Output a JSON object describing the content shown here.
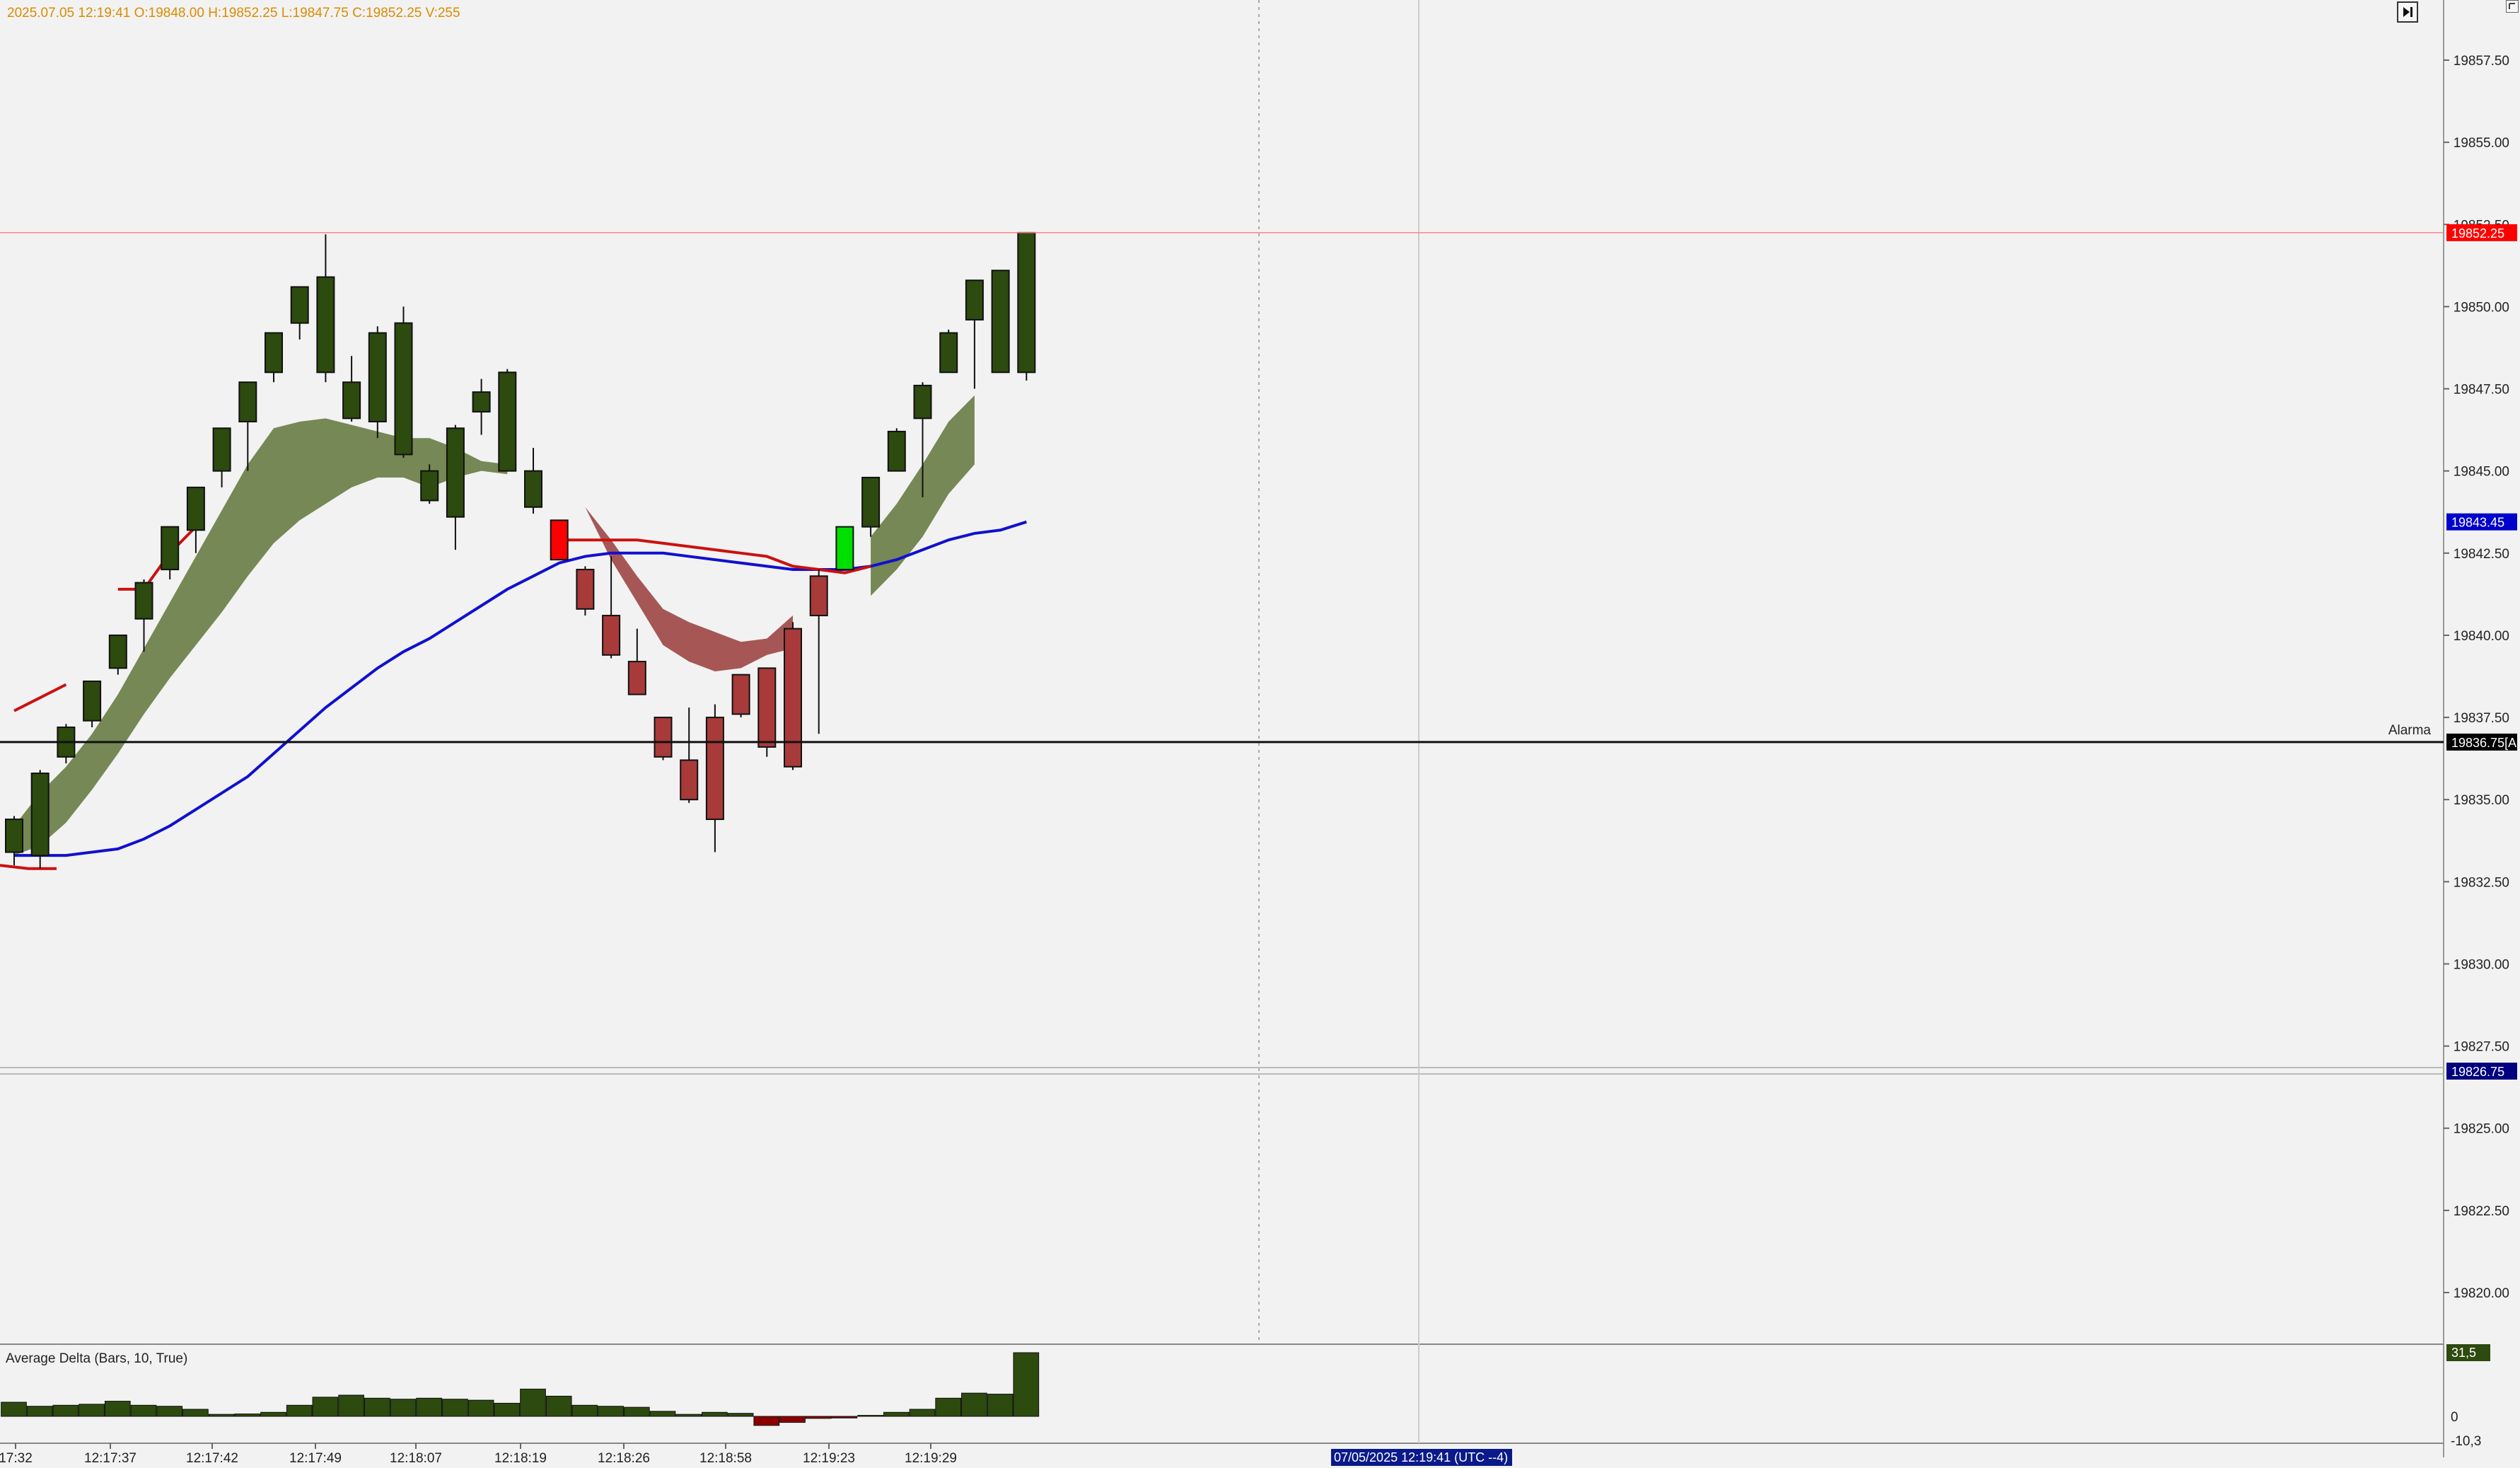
{
  "info_bar": "2025.07.05 12:19:41 O:19848.00 H:19852.25 L:19847.75 C:19852.25 V:255",
  "alarm_label": "Alarma",
  "indicator_title": "Average Delta (Bars, 10, True)",
  "cursor_time_label": "07/05/2025 12:19:41 (UTC --4)",
  "price_tags": {
    "last": "19852.25",
    "ma_blue": "19843.45",
    "alarm": "19836.75[A",
    "lower": "19826.75",
    "delta_value": "31,5"
  },
  "colors": {
    "bull": "#2d4a0f",
    "bear": "#a83a3a",
    "bull_cloud": "#6b7f48",
    "bear_cloud": "#a04a48",
    "ma_blue": "#1010d0",
    "ma_red": "#cc1010",
    "highlight_red": "#ff0000",
    "highlight_green": "#00e000"
  },
  "chart_data": {
    "type": "candlestick",
    "y_axis": {
      "ticks": [
        "19857.50",
        "19855.00",
        "19852.50",
        "19850.00",
        "19847.50",
        "19845.00",
        "19842.50",
        "19840.00",
        "19837.50",
        "19835.00",
        "19832.50",
        "19830.00",
        "19827.50",
        "19825.00",
        "19822.50",
        "19820.00"
      ],
      "range": [
        19819.0,
        19858.5
      ]
    },
    "x_axis": {
      "ticks": [
        "17:32",
        "12:17:37",
        "12:17:42",
        "12:17:49",
        "12:18:07",
        "12:18:19",
        "12:18:26",
        "12:18:58",
        "12:19:23",
        "12:19:29"
      ]
    },
    "candles": [
      {
        "o": 19833.4,
        "h": 19834.5,
        "l": 19833.0,
        "c": 19834.4,
        "color": "bull"
      },
      {
        "o": 19833.3,
        "h": 19835.9,
        "l": 19832.9,
        "c": 19835.8,
        "color": "bull"
      },
      {
        "o": 19836.3,
        "h": 19837.3,
        "l": 19836.1,
        "c": 19837.2,
        "color": "bull"
      },
      {
        "o": 19837.4,
        "h": 19838.6,
        "l": 19837.2,
        "c": 19838.6,
        "color": "bull"
      },
      {
        "o": 19839.0,
        "h": 19840.0,
        "l": 19838.8,
        "c": 19840.0,
        "color": "bull"
      },
      {
        "o": 19840.5,
        "h": 19841.7,
        "l": 19839.5,
        "c": 19841.6,
        "color": "bull"
      },
      {
        "o": 19842.0,
        "h": 19843.3,
        "l": 19841.7,
        "c": 19843.3,
        "color": "bull"
      },
      {
        "o": 19843.2,
        "h": 19844.5,
        "l": 19842.5,
        "c": 19844.5,
        "color": "bull"
      },
      {
        "o": 19845.0,
        "h": 19846.3,
        "l": 19844.5,
        "c": 19846.3,
        "color": "bull"
      },
      {
        "o": 19846.5,
        "h": 19847.7,
        "l": 19845.0,
        "c": 19847.7,
        "color": "bull"
      },
      {
        "o": 19848.0,
        "h": 19849.2,
        "l": 19847.7,
        "c": 19849.2,
        "color": "bull"
      },
      {
        "o": 19849.5,
        "h": 19850.6,
        "l": 19849.0,
        "c": 19850.6,
        "color": "bull"
      },
      {
        "o": 19848.0,
        "h": 19852.2,
        "l": 19847.7,
        "c": 19850.9,
        "color": "bull"
      },
      {
        "o": 19847.7,
        "h": 19848.5,
        "l": 19846.5,
        "c": 19846.6,
        "color": "bull"
      },
      {
        "o": 19846.5,
        "h": 19849.4,
        "l": 19846.0,
        "c": 19849.2,
        "color": "bull"
      },
      {
        "o": 19849.5,
        "h": 19850.0,
        "l": 19845.4,
        "c": 19845.5,
        "color": "bull"
      },
      {
        "o": 19845.0,
        "h": 19845.2,
        "l": 19844.0,
        "c": 19844.1,
        "color": "bull"
      },
      {
        "o": 19843.6,
        "h": 19846.4,
        "l": 19842.6,
        "c": 19846.3,
        "color": "bull"
      },
      {
        "o": 19847.4,
        "h": 19847.8,
        "l": 19846.1,
        "c": 19846.8,
        "color": "bull"
      },
      {
        "o": 19845.0,
        "h": 19848.1,
        "l": 19845.0,
        "c": 19848.0,
        "color": "bull"
      },
      {
        "o": 19845.0,
        "h": 19845.7,
        "l": 19843.7,
        "c": 19843.9,
        "color": "bull"
      },
      {
        "o": 19843.5,
        "h": 19843.5,
        "l": 19842.3,
        "c": 19842.3,
        "color": "highlight_red"
      },
      {
        "o": 19842.0,
        "h": 19842.1,
        "l": 19840.6,
        "c": 19840.8,
        "color": "bear"
      },
      {
        "o": 19840.6,
        "h": 19842.4,
        "l": 19839.3,
        "c": 19839.4,
        "color": "bear"
      },
      {
        "o": 19839.2,
        "h": 19840.2,
        "l": 19838.2,
        "c": 19838.2,
        "color": "bear"
      },
      {
        "o": 19837.5,
        "h": 19837.5,
        "l": 19836.2,
        "c": 19836.3,
        "color": "bear"
      },
      {
        "o": 19836.2,
        "h": 19837.8,
        "l": 19834.9,
        "c": 19835.0,
        "color": "bear"
      },
      {
        "o": 19837.5,
        "h": 19837.9,
        "l": 19833.4,
        "c": 19834.4,
        "color": "bear"
      },
      {
        "o": 19838.8,
        "h": 19838.8,
        "l": 19837.5,
        "c": 19837.6,
        "color": "bear"
      },
      {
        "o": 19839.0,
        "h": 19839.0,
        "l": 19836.3,
        "c": 19836.6,
        "color": "bear"
      },
      {
        "o": 19840.2,
        "h": 19840.4,
        "l": 19835.9,
        "c": 19836.0,
        "color": "bear"
      },
      {
        "o": 19841.8,
        "h": 19842.0,
        "l": 19837.0,
        "c": 19840.6,
        "color": "bear"
      },
      {
        "o": 19842.0,
        "h": 19843.3,
        "l": 19842.0,
        "c": 19843.3,
        "color": "highlight_green"
      },
      {
        "o": 19843.3,
        "h": 19844.8,
        "l": 19843.0,
        "c": 19844.8,
        "color": "bull"
      },
      {
        "o": 19845.0,
        "h": 19846.3,
        "l": 19845.0,
        "c": 19846.2,
        "color": "bull"
      },
      {
        "o": 19846.6,
        "h": 19847.7,
        "l": 19844.2,
        "c": 19847.6,
        "color": "bull"
      },
      {
        "o": 19848.0,
        "h": 19849.3,
        "l": 19848.0,
        "c": 19849.2,
        "color": "bull"
      },
      {
        "o": 19849.6,
        "h": 19850.8,
        "l": 19847.5,
        "c": 19850.8,
        "color": "bull"
      },
      {
        "o": 19848.0,
        "h": 19851.1,
        "l": 19848.0,
        "c": 19851.1,
        "color": "bull"
      },
      {
        "o": 19848.0,
        "h": 19852.25,
        "l": 19847.75,
        "c": 19852.25,
        "color": "bull"
      }
    ],
    "ma_blue": [
      19833.3,
      19833.3,
      19833.3,
      19833.4,
      19833.5,
      19833.8,
      19834.2,
      19834.7,
      19835.2,
      19835.7,
      19836.4,
      19837.1,
      19837.8,
      19838.4,
      19839.0,
      19839.5,
      19839.9,
      19840.4,
      19840.9,
      19841.4,
      19841.8,
      19842.2,
      19842.4,
      19842.5,
      19842.5,
      19842.5,
      19842.4,
      19842.3,
      19842.2,
      19842.1,
      19842.0,
      19842.0,
      19842.0,
      19842.1,
      19842.3,
      19842.6,
      19842.9,
      19843.1,
      19843.2,
      19843.45
    ],
    "ma_red_segments": [
      {
        "start": 0,
        "values": [
          19837.7,
          19838.1,
          19838.5
        ]
      },
      {
        "start": 4,
        "values": [
          19841.4,
          19841.4,
          19842.5,
          19843.3
        ]
      },
      {
        "start": 21,
        "values": [
          19842.9,
          19842.9,
          19842.9,
          19842.9,
          19842.8,
          19842.7,
          19842.6,
          19842.5,
          19842.4,
          19842.1,
          19842.0,
          19841.9,
          19842.1
        ]
      }
    ],
    "ma_red_tail": [
      19833.0,
      19832.9,
      19832.9
    ],
    "bull_cloud_1": {
      "start": 0,
      "upper": [
        19834.2,
        19835.2,
        19836.0,
        19837.0,
        19838.2,
        19839.6,
        19841.0,
        19842.4,
        19843.8,
        19845.2,
        19846.3,
        19846.5,
        19846.6,
        19846.4,
        19846.2,
        19846.0,
        19846.0,
        19845.7,
        19845.3,
        19845.2
      ],
      "lower": [
        19833.3,
        19833.6,
        19834.3,
        19835.3,
        19836.4,
        19837.6,
        19838.7,
        19839.7,
        19840.7,
        19841.8,
        19842.8,
        19843.5,
        19844.0,
        19844.5,
        19844.8,
        19844.8,
        19844.5,
        19844.8,
        19845.0,
        19844.9
      ]
    },
    "bear_cloud": {
      "start": 22,
      "upper": [
        19843.9,
        19842.9,
        19841.8,
        19840.8,
        19840.4,
        19840.1,
        19839.8,
        19839.9,
        19840.6
      ],
      "lower": [
        19843.9,
        19842.3,
        19841.0,
        19839.7,
        19839.2,
        19838.9,
        19839.0,
        19839.4,
        19839.6
      ]
    },
    "bull_cloud_2": {
      "start": 33,
      "upper": [
        19843.0,
        19844.0,
        19845.2,
        19846.5,
        19847.3
      ],
      "lower": [
        19841.2,
        19842.0,
        19843.0,
        19844.3,
        19845.2
      ]
    },
    "delta_histogram": {
      "values": [
        7,
        5,
        5.5,
        6,
        7.5,
        5.5,
        5,
        3.5,
        1,
        1.2,
        2,
        5.5,
        9.5,
        10.5,
        9,
        8.5,
        9,
        8.5,
        8,
        6.5,
        13.5,
        10,
        5.5,
        5,
        4.5,
        2.5,
        1,
        2,
        1.5,
        -4.5,
        -3,
        -1,
        -0.8,
        0.5,
        2,
        3.5,
        9,
        11.5,
        11,
        31.5
      ],
      "range": [
        -10.3,
        31.5
      ],
      "tick_labels": [
        "31,5",
        "0",
        "-10,3"
      ]
    }
  }
}
